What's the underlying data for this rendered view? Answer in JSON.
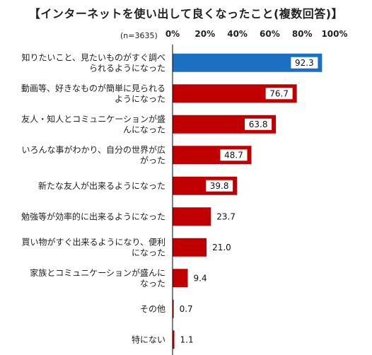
{
  "title": "【インターネットを使い出して良くなったこと(複数回答)】",
  "note": "(n=3635)",
  "chart_data": {
    "type": "bar",
    "orientation": "horizontal",
    "xlim": [
      0,
      100
    ],
    "tick_labels": [
      "0%",
      "20%",
      "40%",
      "60%",
      "80%",
      "100%"
    ],
    "categories": [
      [
        "知りたいこと、見たいものがすぐ調べ",
        "られるようになった"
      ],
      [
        "動画等、好きなものが簡単に見られる",
        "ようになった"
      ],
      [
        "友人・知人とコミュニケーションが盛",
        "んになった"
      ],
      [
        "いろんな事がわかり、自分の世界が広",
        "がった"
      ],
      [
        "新たな友人が出来るようになった"
      ],
      [
        "勉強等が効率的に出来るようになった"
      ],
      [
        "買い物がすぐ出来るようになり、便利",
        "になった"
      ],
      [
        "家族とコミュニケーションが盛んに",
        "なった"
      ],
      [
        "その他"
      ],
      [
        "特にない"
      ]
    ],
    "values": [
      92.3,
      76.7,
      63.8,
      48.7,
      39.8,
      23.7,
      21.0,
      9.4,
      0.7,
      1.1
    ],
    "value_labels": [
      "92.3",
      "76.7",
      "63.8",
      "48.7",
      "39.8",
      "23.7",
      "21.0",
      "9.4",
      "0.7",
      "1.1"
    ],
    "highlight_index": 0,
    "colors": {
      "highlight": "#1b70c1",
      "bar": "#c00000",
      "axis": "#000000"
    },
    "grid": false
  }
}
